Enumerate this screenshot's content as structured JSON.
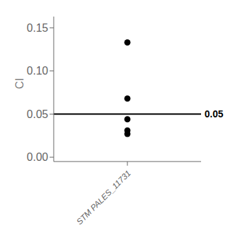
{
  "chart_data": {
    "type": "scatter",
    "categories": [
      "STM PALES_11731"
    ],
    "values": [
      [
        0.133,
        0.068,
        0.044,
        0.027,
        0.031
      ]
    ],
    "color": "#000000",
    "y_label": "CI",
    "ylim": [
      -0.005,
      0.163
    ],
    "yticks": [
      {
        "value": 0,
        "label": "0.00"
      },
      0.05,
      {
        "value": 0.1,
        "label": "0.10"
      },
      0.15
    ],
    "annotations": [
      {
        "text": "0.05",
        "y": 0.05,
        "color": "#000000"
      }
    ],
    "grid": false
  }
}
